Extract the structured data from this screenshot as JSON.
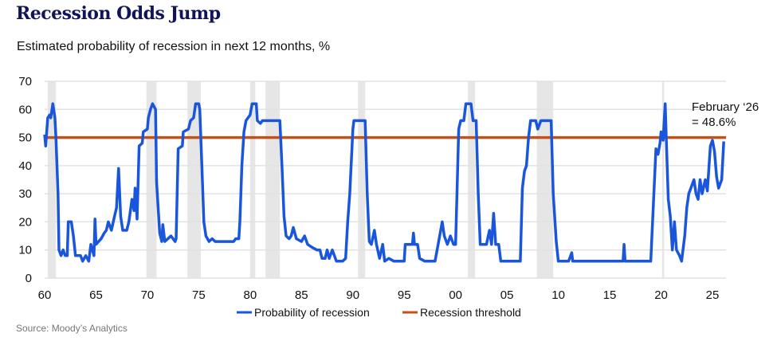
{
  "title": "Recession Odds Jump",
  "subtitle": "Estimated probability of recession in next 12 months, %",
  "source": "Source: Moody’s Analytics",
  "chart_data": {
    "type": "line",
    "xlabel": "",
    "ylabel": "",
    "xlim": [
      1960,
      2026.3
    ],
    "ylim": [
      0,
      70
    ],
    "yticks": [
      0,
      10,
      20,
      30,
      40,
      50,
      60,
      70
    ],
    "xticks": [
      {
        "value": 1960,
        "label": "60"
      },
      {
        "value": 1965,
        "label": "65"
      },
      {
        "value": 1970,
        "label": "70"
      },
      {
        "value": 1975,
        "label": "75"
      },
      {
        "value": 1980,
        "label": "80"
      },
      {
        "value": 1985,
        "label": "85"
      },
      {
        "value": 1990,
        "label": "90"
      },
      {
        "value": 1995,
        "label": "95"
      },
      {
        "value": 2000,
        "label": "00"
      },
      {
        "value": 2005,
        "label": "05"
      },
      {
        "value": 2010,
        "label": "10"
      },
      {
        "value": 2015,
        "label": "15"
      },
      {
        "value": 2020,
        "label": "20"
      },
      {
        "value": 2025,
        "label": "25"
      }
    ],
    "grid": true,
    "legend_position": "bottom",
    "recession_bands": [
      [
        1960.3,
        1961.1
      ],
      [
        1969.9,
        1970.9
      ],
      [
        1973.9,
        1975.2
      ],
      [
        1980.0,
        1980.5
      ],
      [
        1981.5,
        1982.9
      ],
      [
        1990.5,
        1991.2
      ],
      [
        2001.2,
        2001.9
      ],
      [
        2007.9,
        2009.5
      ],
      [
        2020.1,
        2020.3
      ]
    ],
    "band_color": "#e6e6e6",
    "series": [
      {
        "name": "Probability of recession",
        "color": "#1a56db",
        "points": [
          [
            1960.0,
            51
          ],
          [
            1960.1,
            47
          ],
          [
            1960.2,
            52
          ],
          [
            1960.3,
            57
          ],
          [
            1960.5,
            58
          ],
          [
            1960.6,
            57
          ],
          [
            1960.8,
            62
          ],
          [
            1961.0,
            57
          ],
          [
            1961.1,
            50
          ],
          [
            1961.3,
            30
          ],
          [
            1961.4,
            10
          ],
          [
            1961.6,
            8
          ],
          [
            1961.8,
            10
          ],
          [
            1962.0,
            8
          ],
          [
            1962.2,
            8
          ],
          [
            1962.3,
            20
          ],
          [
            1962.6,
            20
          ],
          [
            1962.8,
            15
          ],
          [
            1963.0,
            8
          ],
          [
            1963.5,
            8
          ],
          [
            1963.7,
            6
          ],
          [
            1964.0,
            8
          ],
          [
            1964.3,
            6
          ],
          [
            1964.5,
            12
          ],
          [
            1964.8,
            8
          ],
          [
            1964.9,
            21
          ],
          [
            1965.0,
            12
          ],
          [
            1965.5,
            14
          ],
          [
            1965.8,
            16
          ],
          [
            1966.0,
            17
          ],
          [
            1966.2,
            20
          ],
          [
            1966.5,
            17
          ],
          [
            1966.8,
            22
          ],
          [
            1967.0,
            25
          ],
          [
            1967.2,
            39
          ],
          [
            1967.4,
            22
          ],
          [
            1967.6,
            17
          ],
          [
            1968.0,
            17
          ],
          [
            1968.2,
            20
          ],
          [
            1968.5,
            28
          ],
          [
            1968.7,
            24
          ],
          [
            1968.8,
            32
          ],
          [
            1969.0,
            21
          ],
          [
            1969.2,
            47
          ],
          [
            1969.5,
            48
          ],
          [
            1969.6,
            52
          ],
          [
            1970.0,
            53
          ],
          [
            1970.1,
            57
          ],
          [
            1970.3,
            60
          ],
          [
            1970.5,
            62
          ],
          [
            1970.8,
            60
          ],
          [
            1970.9,
            34
          ],
          [
            1971.2,
            16
          ],
          [
            1971.4,
            13
          ],
          [
            1971.5,
            19
          ],
          [
            1971.7,
            13
          ],
          [
            1972.0,
            14
          ],
          [
            1972.3,
            15
          ],
          [
            1972.7,
            13
          ],
          [
            1972.8,
            14
          ],
          [
            1973.0,
            46
          ],
          [
            1973.4,
            47
          ],
          [
            1973.5,
            52
          ],
          [
            1974.0,
            53
          ],
          [
            1974.2,
            56
          ],
          [
            1974.5,
            57
          ],
          [
            1974.7,
            62
          ],
          [
            1975.0,
            62
          ],
          [
            1975.1,
            60
          ],
          [
            1975.3,
            40
          ],
          [
            1975.5,
            20
          ],
          [
            1975.7,
            15
          ],
          [
            1976.0,
            13
          ],
          [
            1976.3,
            14
          ],
          [
            1976.6,
            13
          ],
          [
            1978.4,
            13
          ],
          [
            1978.6,
            14
          ],
          [
            1978.9,
            14
          ],
          [
            1979.0,
            20
          ],
          [
            1979.2,
            40
          ],
          [
            1979.4,
            52
          ],
          [
            1979.6,
            56
          ],
          [
            1980.0,
            58
          ],
          [
            1980.2,
            62
          ],
          [
            1980.6,
            62
          ],
          [
            1980.7,
            56
          ],
          [
            1981.0,
            55
          ],
          [
            1981.2,
            56
          ],
          [
            1982.9,
            56
          ],
          [
            1983.1,
            40
          ],
          [
            1983.3,
            22
          ],
          [
            1983.5,
            15
          ],
          [
            1983.8,
            14
          ],
          [
            1984.0,
            15
          ],
          [
            1984.2,
            18
          ],
          [
            1984.5,
            14
          ],
          [
            1985.0,
            13
          ],
          [
            1985.3,
            15
          ],
          [
            1985.6,
            12
          ],
          [
            1986.0,
            11
          ],
          [
            1986.5,
            10
          ],
          [
            1986.8,
            10
          ],
          [
            1987.0,
            7
          ],
          [
            1987.3,
            7
          ],
          [
            1987.5,
            10
          ],
          [
            1987.7,
            7
          ],
          [
            1988.0,
            10
          ],
          [
            1988.4,
            6
          ],
          [
            1989.0,
            6
          ],
          [
            1989.3,
            7
          ],
          [
            1989.5,
            20
          ],
          [
            1989.7,
            30
          ],
          [
            1990.0,
            53
          ],
          [
            1990.1,
            56
          ],
          [
            1991.2,
            56
          ],
          [
            1991.4,
            30
          ],
          [
            1991.6,
            13
          ],
          [
            1991.8,
            12
          ],
          [
            1992.1,
            17
          ],
          [
            1992.3,
            12
          ],
          [
            1992.6,
            7
          ],
          [
            1992.9,
            12
          ],
          [
            1993.1,
            6
          ],
          [
            1993.5,
            7
          ],
          [
            1994.0,
            6
          ],
          [
            1995.0,
            6
          ],
          [
            1995.1,
            12
          ],
          [
            1995.8,
            12
          ],
          [
            1995.9,
            16
          ],
          [
            1996.0,
            12
          ],
          [
            1996.3,
            12
          ],
          [
            1996.5,
            7
          ],
          [
            1997.0,
            6
          ],
          [
            1998.0,
            6
          ],
          [
            1998.3,
            12
          ],
          [
            1998.7,
            20
          ],
          [
            1998.9,
            15
          ],
          [
            1999.2,
            12
          ],
          [
            1999.5,
            15
          ],
          [
            1999.8,
            12
          ],
          [
            2000.0,
            12
          ],
          [
            2000.3,
            53
          ],
          [
            2000.5,
            56
          ],
          [
            2000.8,
            56
          ],
          [
            2001.0,
            62
          ],
          [
            2001.5,
            62
          ],
          [
            2001.7,
            56
          ],
          [
            2002.0,
            56
          ],
          [
            2002.2,
            30
          ],
          [
            2002.4,
            12
          ],
          [
            2003.0,
            12
          ],
          [
            2003.3,
            17
          ],
          [
            2003.5,
            12
          ],
          [
            2003.7,
            23
          ],
          [
            2003.9,
            12
          ],
          [
            2004.2,
            12
          ],
          [
            2004.4,
            6
          ],
          [
            2006.3,
            6
          ],
          [
            2006.5,
            32
          ],
          [
            2006.7,
            38
          ],
          [
            2006.9,
            40
          ],
          [
            2007.0,
            45
          ],
          [
            2007.1,
            50
          ],
          [
            2007.3,
            56
          ],
          [
            2007.8,
            56
          ],
          [
            2008.0,
            53
          ],
          [
            2008.3,
            56
          ],
          [
            2009.3,
            56
          ],
          [
            2009.5,
            30
          ],
          [
            2009.8,
            13
          ],
          [
            2010.0,
            6
          ],
          [
            2011.0,
            6
          ],
          [
            2011.3,
            9
          ],
          [
            2011.4,
            6
          ],
          [
            2016.3,
            6
          ],
          [
            2016.4,
            12
          ],
          [
            2016.5,
            6
          ],
          [
            2019.0,
            6
          ],
          [
            2019.3,
            30
          ],
          [
            2019.5,
            46
          ],
          [
            2019.7,
            44
          ],
          [
            2019.9,
            48
          ],
          [
            2020.0,
            52
          ],
          [
            2020.2,
            49
          ],
          [
            2020.4,
            62
          ],
          [
            2020.5,
            50
          ],
          [
            2020.7,
            28
          ],
          [
            2020.9,
            22
          ],
          [
            2021.1,
            10
          ],
          [
            2021.3,
            20
          ],
          [
            2021.5,
            10
          ],
          [
            2021.8,
            8
          ],
          [
            2022.0,
            6
          ],
          [
            2022.3,
            15
          ],
          [
            2022.5,
            25
          ],
          [
            2022.7,
            30
          ],
          [
            2023.0,
            33
          ],
          [
            2023.2,
            35
          ],
          [
            2023.4,
            30
          ],
          [
            2023.6,
            28
          ],
          [
            2023.8,
            35
          ],
          [
            2024.0,
            30
          ],
          [
            2024.3,
            35
          ],
          [
            2024.5,
            31
          ],
          [
            2024.8,
            47
          ],
          [
            2025.0,
            49
          ],
          [
            2025.2,
            45
          ],
          [
            2025.4,
            36
          ],
          [
            2025.6,
            32
          ],
          [
            2025.9,
            35
          ],
          [
            2026.1,
            48.6
          ]
        ]
      },
      {
        "name": "Recession threshold",
        "color": "#c4501a",
        "value": 50
      }
    ],
    "annotation": {
      "line1": "February ‘26",
      "line2": "= 48.6%"
    }
  }
}
